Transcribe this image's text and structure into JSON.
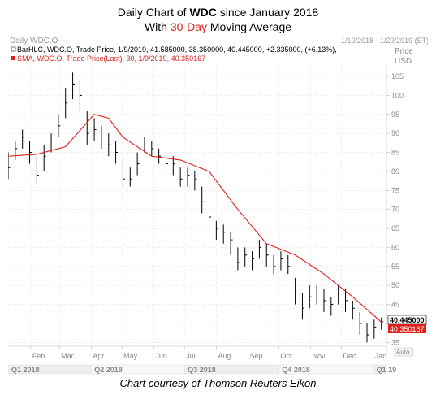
{
  "title": {
    "line1_prefix": "Daily Chart of ",
    "line1_bold": "WDC",
    "line1_suffix": " since January 2018",
    "line2_prefix": "With ",
    "line2_highlight": "30-Day",
    "line2_suffix": " Moving Average"
  },
  "panel": {
    "name": "Daily WDC.O",
    "date_range": "1/10/2018 - 1/29/2019 (ET)",
    "price_label": "Price",
    "currency_label": "USD",
    "auto_label": "Auto",
    "legend_bar": "BarHLC, WDC.O, Trade Price, 1/9/2019, 41.585000, 38.350000, 40.445000, +2.335000, (+6.13%),",
    "legend_sma_prefix": "SMA, WDC.O, Trade Price(Last), 30, 1/9/2019, 40.350167",
    "last_price_label": "40.445000",
    "last_sma_label": "40.350167"
  },
  "caption": "Chart courtesy of Thomson Reuters Eikon",
  "colors": {
    "price_bars": "#000000",
    "sma_line": "#e0201b",
    "grid": "#d9d9d9",
    "axis_text": "#888888",
    "quarter_band": "#eeeeee"
  },
  "chart_data": {
    "type": "line",
    "title": "Daily Chart of WDC since January 2018",
    "subtitle": "With 30-Day Moving Average",
    "ylabel": "USD",
    "ylim": [
      34,
      108
    ],
    "y_ticks": [
      35,
      40,
      45,
      50,
      55,
      60,
      65,
      70,
      75,
      80,
      85,
      90,
      95,
      100,
      105
    ],
    "x_month_labels": [
      "Feb",
      "Mar",
      "Apr",
      "May",
      "Jun",
      "Jul",
      "Aug",
      "Sep",
      "Oct",
      "Nov",
      "Dec",
      "Jan"
    ],
    "x_quarter_labels": [
      "Q1 2018",
      "Q2 2018",
      "Q3 2018",
      "Q4 2018",
      "Q1 19"
    ],
    "grid": true,
    "series": [
      {
        "name": "BarHLC, WDC.O, Trade Price",
        "style": "ohlc-bars",
        "x": [
          "2018-01-10",
          "2018-01-17",
          "2018-01-24",
          "2018-01-31",
          "2018-02-07",
          "2018-02-14",
          "2018-02-21",
          "2018-02-28",
          "2018-03-07",
          "2018-03-14",
          "2018-03-21",
          "2018-03-28",
          "2018-04-04",
          "2018-04-11",
          "2018-04-18",
          "2018-04-25",
          "2018-05-02",
          "2018-05-09",
          "2018-05-16",
          "2018-05-23",
          "2018-05-30",
          "2018-06-06",
          "2018-06-13",
          "2018-06-20",
          "2018-06-27",
          "2018-07-04",
          "2018-07-11",
          "2018-07-18",
          "2018-07-25",
          "2018-08-01",
          "2018-08-08",
          "2018-08-15",
          "2018-08-22",
          "2018-08-29",
          "2018-09-05",
          "2018-09-12",
          "2018-09-19",
          "2018-09-26",
          "2018-10-03",
          "2018-10-10",
          "2018-10-17",
          "2018-10-24",
          "2018-10-31",
          "2018-11-07",
          "2018-11-14",
          "2018-11-21",
          "2018-11-28",
          "2018-12-05",
          "2018-12-12",
          "2018-12-19",
          "2018-12-26",
          "2019-01-02",
          "2019-01-09"
        ],
        "close": [
          81,
          86,
          89,
          85,
          79,
          84,
          88,
          92,
          98,
          103,
          100,
          90,
          91,
          88,
          87,
          85,
          78,
          78,
          82,
          88,
          86,
          84,
          82,
          82,
          78,
          79,
          78,
          72,
          68,
          65,
          64,
          62,
          56,
          58,
          57,
          60,
          58,
          55,
          57,
          55,
          48,
          44,
          47,
          48,
          46,
          45,
          48,
          46,
          44,
          40,
          37,
          39,
          40.445
        ],
        "high": [
          85,
          88,
          91,
          88,
          84,
          87,
          90,
          95,
          102,
          106,
          104,
          96,
          94,
          92,
          90,
          88,
          84,
          81,
          85,
          89,
          88,
          86,
          85,
          84,
          81,
          81,
          80,
          76,
          71,
          67,
          66,
          64,
          60,
          60,
          59,
          62,
          61,
          58,
          59,
          58,
          52,
          48,
          50,
          50,
          49,
          47,
          50,
          49,
          46,
          43,
          40,
          41,
          41.585
        ],
        "low": [
          78,
          83,
          86,
          82,
          77,
          80,
          85,
          89,
          94,
          99,
          96,
          87,
          88,
          86,
          84,
          82,
          76,
          76,
          79,
          85,
          84,
          82,
          80,
          79,
          76,
          76,
          75,
          69,
          65,
          62,
          61,
          58,
          54,
          55,
          54,
          57,
          55,
          53,
          54,
          53,
          45,
          41,
          44,
          45,
          43,
          42,
          45,
          43,
          41,
          37,
          35,
          36,
          38.35
        ]
      },
      {
        "name": "SMA, WDC.O, Trade Price(Last), 30",
        "style": "line",
        "x": [
          "2018-01-10",
          "2018-02-07",
          "2018-03-07",
          "2018-04-04",
          "2018-04-18",
          "2018-05-02",
          "2018-05-30",
          "2018-06-27",
          "2018-07-25",
          "2018-08-22",
          "2018-09-19",
          "2018-10-17",
          "2018-11-14",
          "2018-12-12",
          "2019-01-09"
        ],
        "values": [
          84,
          84.5,
          86.5,
          95,
          94,
          89,
          84,
          83,
          80,
          70,
          61,
          58,
          53,
          47,
          40.350167
        ]
      }
    ]
  }
}
